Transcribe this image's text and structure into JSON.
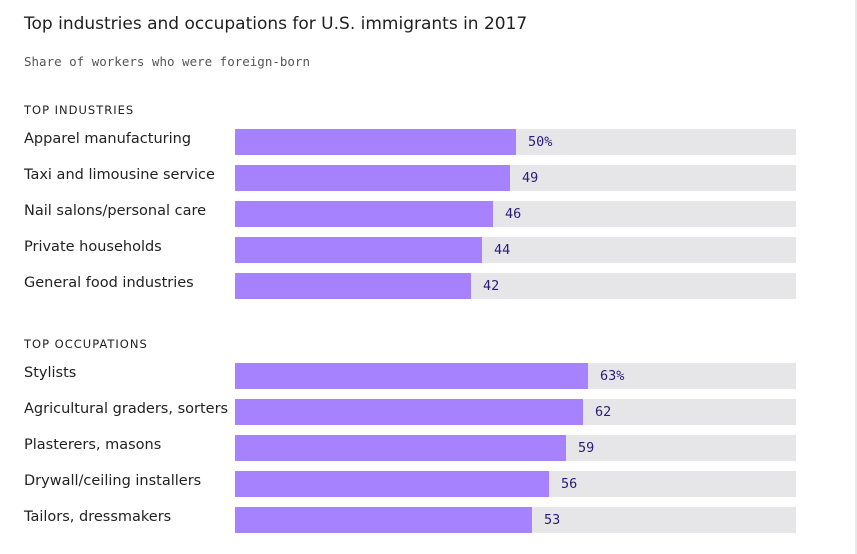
{
  "title": "Top industries and occupations for U.S. immigrants in 2017",
  "subtitle": "Share of workers who were foreign-born",
  "colors": {
    "bar": "#a682ff",
    "track": "#e6e6e9",
    "value_text": "#2b1a7a"
  },
  "chart_data": [
    {
      "type": "bar",
      "orientation": "horizontal",
      "section_title": "TOP INDUSTRIES",
      "categories": [
        "Apparel manufacturing",
        "Taxi and limousine service",
        "Nail salons/personal care",
        "Private households",
        "General food industries"
      ],
      "values": [
        50,
        49,
        46,
        44,
        42
      ],
      "value_labels": [
        "50%",
        "49",
        "46",
        "44",
        "42"
      ],
      "xlim": [
        0,
        100
      ]
    },
    {
      "type": "bar",
      "orientation": "horizontal",
      "section_title": "TOP OCCUPATIONS",
      "categories": [
        "Stylists",
        "Agricultural graders, sorters",
        "Plasterers, masons",
        "Drywall/ceiling installers",
        "Tailors, dressmakers"
      ],
      "values": [
        63,
        62,
        59,
        56,
        53
      ],
      "value_labels": [
        "63%",
        "62",
        "59",
        "56",
        "53"
      ],
      "xlim": [
        0,
        100
      ]
    }
  ]
}
